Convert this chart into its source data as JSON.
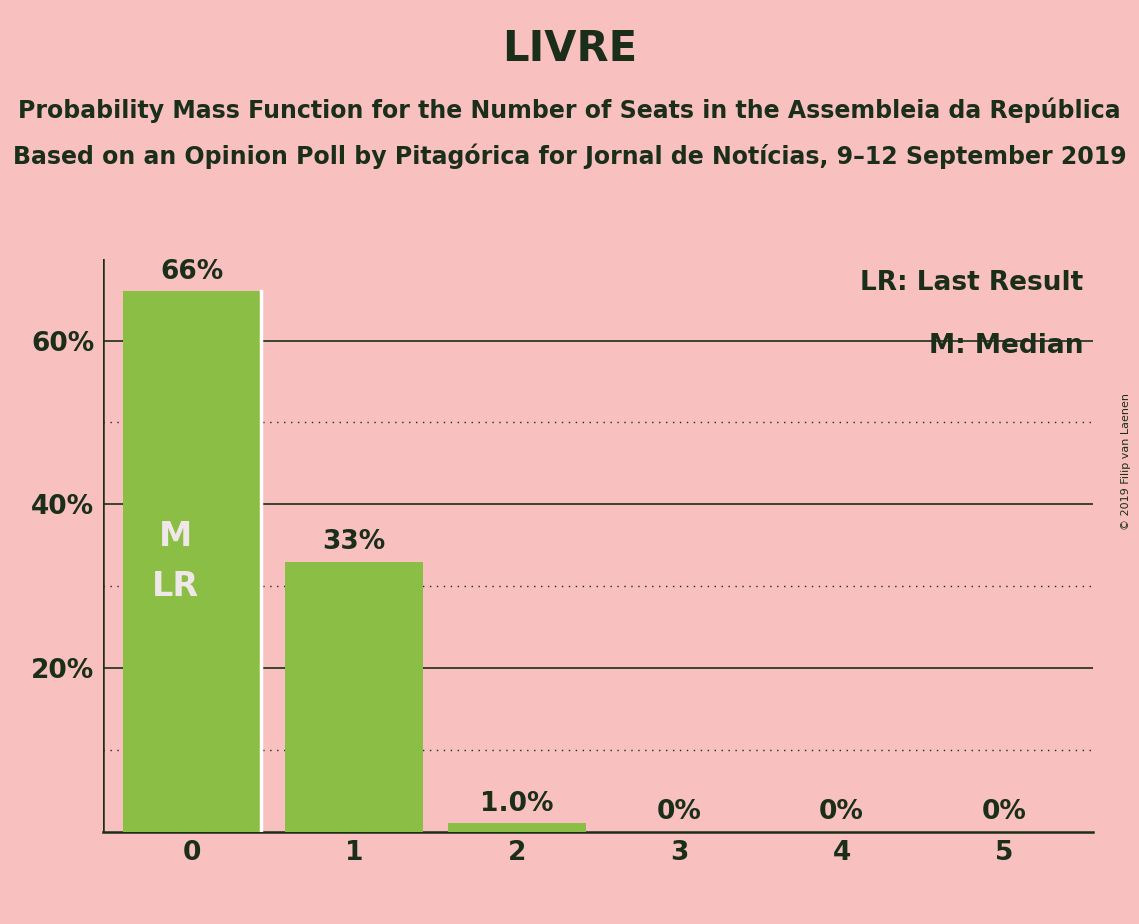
{
  "title": "LIVRE",
  "subtitle1": "Probability Mass Function for the Number of Seats in the Assembleia da República",
  "subtitle2": "Based on an Opinion Poll by Pitagórica for Jornal de Notícias, 9–12 September 2019",
  "copyright": "© 2019 Filip van Laenen",
  "categories": [
    0,
    1,
    2,
    3,
    4,
    5
  ],
  "values": [
    0.66,
    0.33,
    0.01,
    0.0,
    0.0,
    0.0
  ],
  "bar_labels": [
    "66%",
    "33%",
    "1.0%",
    "0%",
    "0%",
    "0%"
  ],
  "bar_color": "#8bbe45",
  "background_color": "#f9c0c0",
  "text_color": "#1a2e1a",
  "bar_label_color_inside": "#f0e8e8",
  "legend_text1": "LR: Last Result",
  "legend_text2": "M: Median",
  "ylim": [
    0,
    0.7
  ],
  "solid_gridlines": [
    0.2,
    0.4,
    0.6
  ],
  "dotted_gridlines": [
    0.1,
    0.3,
    0.5
  ],
  "title_fontsize": 30,
  "subtitle_fontsize": 17,
  "label_fontsize": 19,
  "tick_fontsize": 19,
  "ml_fontsize": 24
}
